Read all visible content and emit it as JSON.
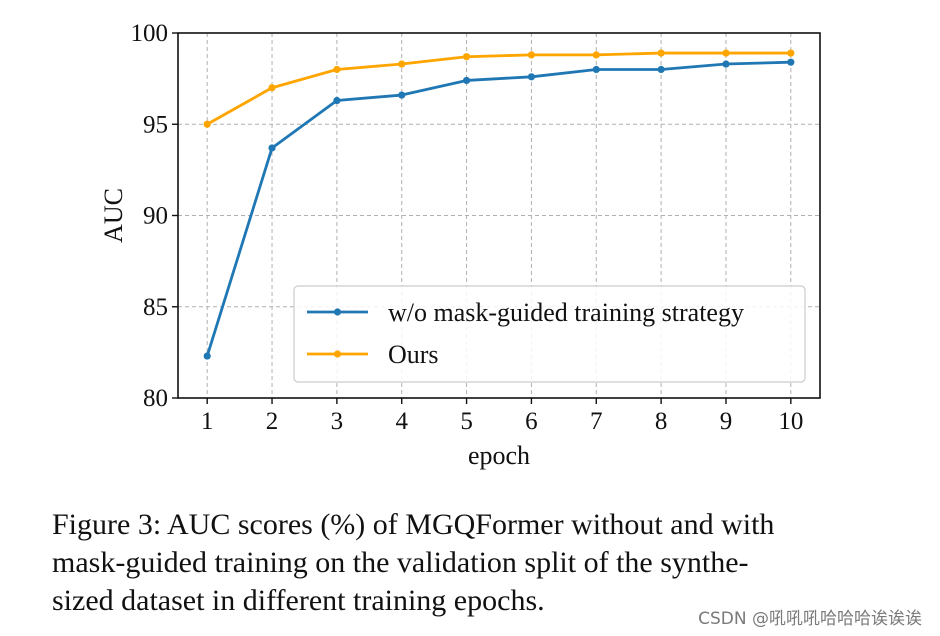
{
  "chart_data": {
    "type": "line",
    "xlabel": "epoch",
    "ylabel": "AUC",
    "x": [
      1,
      2,
      3,
      4,
      5,
      6,
      7,
      8,
      9,
      10
    ],
    "xticks": [
      "1",
      "2",
      "3",
      "4",
      "5",
      "6",
      "7",
      "8",
      "9",
      "10"
    ],
    "yticks": [
      "80",
      "85",
      "90",
      "95",
      "100"
    ],
    "xlim": [
      0.55,
      10.45
    ],
    "ylim": [
      80,
      100
    ],
    "grid": true,
    "legend_position": "lower-right",
    "series": [
      {
        "name": "w/o mask-guided training strategy",
        "color": "#1f77b4",
        "values": [
          82.3,
          93.7,
          96.3,
          96.6,
          97.4,
          97.6,
          98.0,
          98.0,
          98.3,
          98.4
        ]
      },
      {
        "name": "Ours",
        "color": "#ffa500",
        "values": [
          95.0,
          97.0,
          98.0,
          98.3,
          98.7,
          98.8,
          98.8,
          98.9,
          98.9,
          98.9
        ]
      }
    ]
  },
  "caption": "Figure 3: AUC scores (%) of MGQFormer without and with\nmask-guided training on the validation split of the synthe-\nsized dataset in different training epochs.",
  "watermark": "CSDN @吼吼吼哈哈哈诶诶诶"
}
